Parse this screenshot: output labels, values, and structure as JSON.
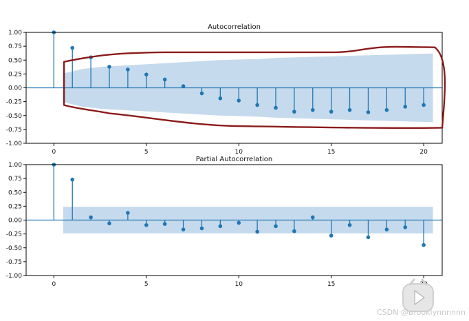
{
  "colors": {
    "stem": "#1f77b4",
    "band": "#bcd3ea",
    "annotation": "#8b1a1a",
    "axis": "#000000"
  },
  "chart_data": [
    {
      "type": "stem",
      "title": "Autocorrelation",
      "xlabel": "",
      "ylabel": "",
      "xlim": [
        -1.5,
        21
      ],
      "ylim": [
        -1.0,
        1.0
      ],
      "xticks": [
        "0",
        "5",
        "10",
        "15",
        "20"
      ],
      "yticks": [
        "1.00",
        "0.75",
        "0.50",
        "0.25",
        "0.00",
        "-0.25",
        "-0.50",
        "-0.75",
        "-1.00"
      ],
      "lags": [
        0,
        1,
        2,
        3,
        4,
        5,
        6,
        7,
        8,
        9,
        10,
        11,
        12,
        13,
        14,
        15,
        16,
        17,
        18,
        19,
        20
      ],
      "values": [
        1.0,
        0.72,
        0.55,
        0.38,
        0.33,
        0.24,
        0.15,
        0.03,
        -0.1,
        -0.19,
        -0.23,
        -0.31,
        -0.36,
        -0.43,
        -0.4,
        -0.43,
        -0.4,
        -0.44,
        -0.4,
        -0.34,
        -0.31
      ],
      "confint_upper": [
        0.26,
        0.34,
        0.38,
        0.4,
        0.42,
        0.44,
        0.46,
        0.48,
        0.5,
        0.51,
        0.52,
        0.54,
        0.55,
        0.56,
        0.57,
        0.58,
        0.59,
        0.6,
        0.61,
        0.62
      ],
      "band_start": 0.5,
      "band_end": 20.5,
      "annotation": "hand-drawn red outline around confidence band"
    },
    {
      "type": "stem",
      "title": "Partial Autocorrelation",
      "xlabel": "",
      "ylabel": "",
      "xlim": [
        -1.5,
        21
      ],
      "ylim": [
        -1.0,
        1.0
      ],
      "xticks": [
        "0",
        "5",
        "10",
        "15",
        "20"
      ],
      "yticks": [
        "1.00",
        "0.75",
        "0.50",
        "0.25",
        "0.00",
        "-0.25",
        "-0.50",
        "-0.75",
        "-1.00"
      ],
      "lags": [
        0,
        1,
        2,
        3,
        4,
        5,
        6,
        7,
        8,
        9,
        10,
        11,
        12,
        13,
        14,
        15,
        16,
        17,
        18,
        19,
        20
      ],
      "values": [
        1.0,
        0.73,
        0.05,
        -0.06,
        0.13,
        -0.09,
        -0.07,
        -0.17,
        -0.15,
        -0.11,
        -0.05,
        -0.21,
        -0.11,
        -0.2,
        0.05,
        -0.28,
        -0.09,
        -0.31,
        -0.17,
        -0.13,
        -0.45
      ],
      "confint": 0.24,
      "band_start": 0.5,
      "band_end": 20.5
    }
  ],
  "watermark": "CSDN @Brooklynnnnnn"
}
